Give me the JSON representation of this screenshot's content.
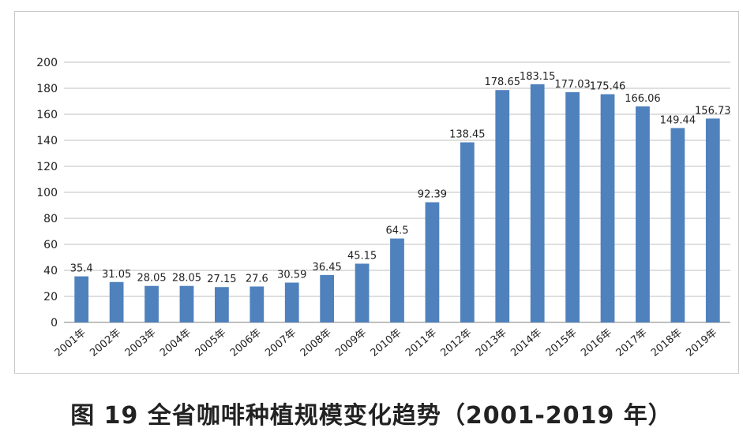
{
  "caption": "图 19 全省咖啡种植规模变化趋势（2001-2019 年）",
  "colors": {
    "bar": "#4f81bd",
    "grid": "#bfbfbf",
    "axis": "#7f7f7f"
  },
  "chart_data": {
    "type": "bar",
    "title": "",
    "xlabel": "",
    "ylabel": "",
    "ylim": [
      0,
      200
    ],
    "yticks": [
      0,
      20,
      40,
      60,
      80,
      100,
      120,
      140,
      160,
      180,
      200
    ],
    "grid": true,
    "legend": "none",
    "categories": [
      "2001年",
      "2002年",
      "2003年",
      "2004年",
      "2005年",
      "2006年",
      "2007年",
      "2008年",
      "2009年",
      "2010年",
      "2011年",
      "2012年",
      "2013年",
      "2014年",
      "2015年",
      "2016年",
      "2017年",
      "2018年",
      "2019年"
    ],
    "values": [
      35.4,
      31.05,
      28.05,
      28.05,
      27.15,
      27.6,
      30.59,
      36.45,
      45.15,
      64.5,
      92.39,
      138.45,
      178.65,
      183.15,
      177.03,
      175.46,
      166.06,
      149.44,
      156.73
    ],
    "value_labels": [
      "35.4",
      "31.05",
      "28.05",
      "28.05",
      "27.15",
      "27.6",
      "30.59",
      "36.45",
      "45.15",
      "64.5",
      "92.39",
      "138.45",
      "178.65",
      "183.15",
      "177.03",
      "175.46",
      "166.06",
      "149.44",
      "156.73"
    ]
  }
}
